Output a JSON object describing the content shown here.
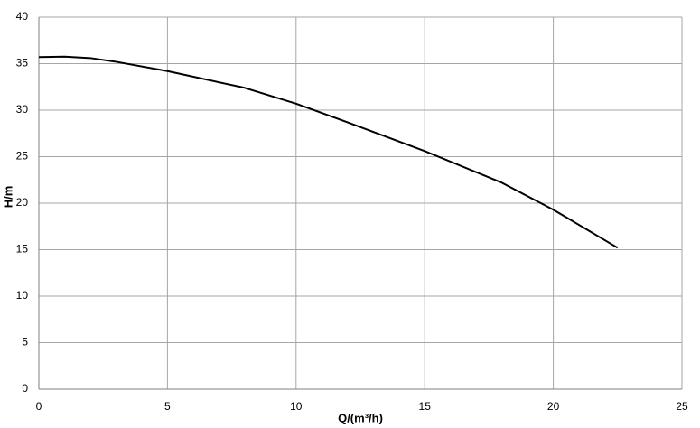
{
  "chart_data": {
    "type": "line",
    "xlabel": "Q/(m³/h)",
    "ylabel": "H/m",
    "x": [
      0,
      1,
      2,
      3,
      5,
      8,
      10,
      12,
      15,
      18,
      20,
      22.5
    ],
    "series": [
      {
        "name": null,
        "color": "#000000",
        "values": [
          35.7,
          35.75,
          35.6,
          35.2,
          34.2,
          32.4,
          30.7,
          28.7,
          25.6,
          22.2,
          19.3,
          15.2
        ]
      }
    ],
    "xlim": [
      0,
      25
    ],
    "xticks": [
      0,
      5,
      10,
      15,
      20,
      25
    ],
    "ylim": [
      0,
      40
    ],
    "yticks": [
      0,
      5,
      10,
      15,
      20,
      25,
      30,
      35,
      40
    ],
    "grid": true
  }
}
